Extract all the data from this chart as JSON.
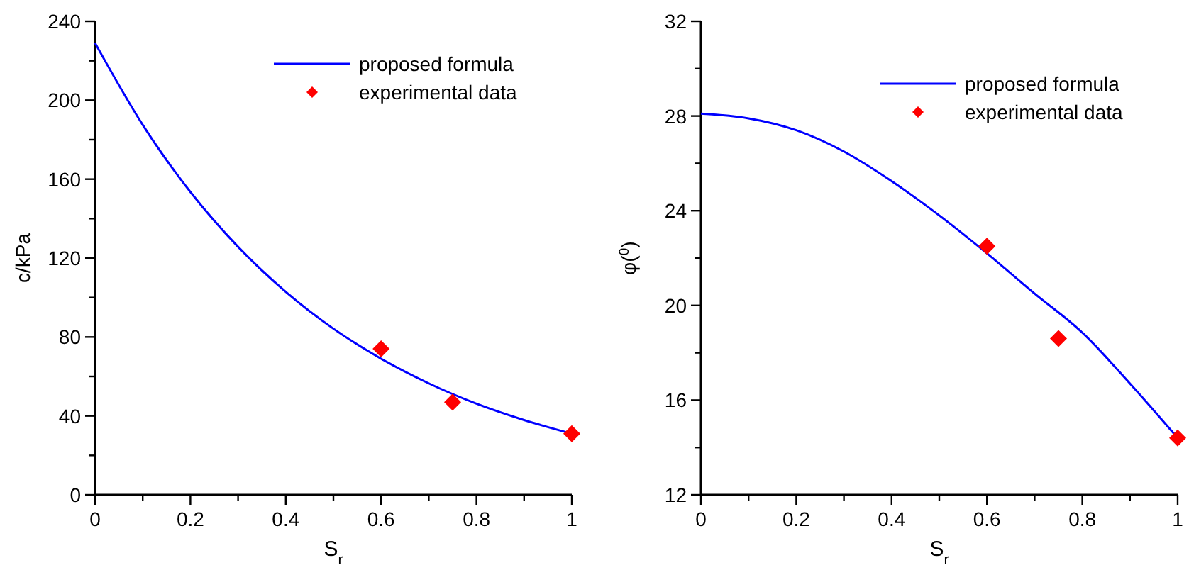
{
  "chart_data": [
    {
      "type": "line",
      "xlabel": "S$_{r}$",
      "ylabel": "c/kPa",
      "xlim": [
        0,
        1
      ],
      "ylim": [
        0,
        240
      ],
      "xticks": [
        0,
        {
          "value": 0.1,
          "label": null
        },
        0.2,
        {
          "value": 0.3,
          "label": null
        },
        0.4,
        {
          "value": 0.5,
          "label": null
        },
        0.6,
        {
          "value": 0.7,
          "label": null
        },
        0.8,
        {
          "value": 0.9,
          "label": null
        },
        1
      ],
      "yticks": [
        0,
        {
          "value": 20,
          "label": null
        },
        40,
        {
          "value": 60,
          "label": null
        },
        80,
        {
          "value": 100,
          "label": null
        },
        120,
        {
          "value": 140,
          "label": null
        },
        160,
        {
          "value": 180,
          "label": null
        },
        200,
        {
          "value": 220,
          "label": null
        },
        240
      ],
      "legend": "top right",
      "grid": false,
      "series": [
        {
          "name": "proposed formula",
          "color": "#0000ff",
          "marker": "none",
          "line_style": "solid",
          "x": [
            0,
            0.1,
            0.2,
            0.3,
            0.4,
            0.5,
            0.6,
            0.7,
            0.8,
            0.9,
            1
          ],
          "values": [
            229,
            187.5,
            153.5,
            125.7,
            102.9,
            84.2,
            69,
            56.5,
            46.2,
            37.9,
            31
          ]
        },
        {
          "name": "experimental data",
          "type": "scatter",
          "color": "#ff0000",
          "marker": "diamond",
          "x": [
            0.6,
            0.75,
            1
          ],
          "values": [
            74,
            47,
            31
          ]
        }
      ]
    },
    {
      "type": "line",
      "xlabel": "S$_{r}$",
      "ylabel": "φ($^{0}$)",
      "xlim": [
        0,
        1
      ],
      "ylim": [
        12,
        32
      ],
      "xticks": [
        0,
        {
          "value": 0.1,
          "label": null
        },
        0.2,
        {
          "value": 0.3,
          "label": null
        },
        0.4,
        {
          "value": 0.5,
          "label": null
        },
        0.6,
        {
          "value": 0.7,
          "label": null
        },
        0.8,
        {
          "value": 0.9,
          "label": null
        },
        1
      ],
      "yticks": [
        12,
        {
          "value": 14,
          "label": null
        },
        16,
        {
          "value": 18,
          "label": null
        },
        20,
        {
          "value": 22,
          "label": null
        },
        24,
        {
          "value": 26,
          "label": null
        },
        28,
        {
          "value": 30,
          "label": null
        },
        32
      ],
      "legend": "top right",
      "grid": false,
      "series": [
        {
          "name": "proposed formula",
          "color": "#0000ff",
          "marker": "none",
          "line_style": "solid",
          "x": [
            0,
            0.1,
            0.2,
            0.3,
            0.4,
            0.5,
            0.6,
            0.7,
            0.8,
            0.9,
            1
          ],
          "values": [
            28.1,
            27.9,
            27.4,
            26.5,
            25.25,
            23.8,
            22.2,
            20.5,
            18.85,
            16.7,
            14.4
          ]
        },
        {
          "name": "experimental data",
          "type": "scatter",
          "color": "#ff0000",
          "marker": "diamond",
          "x": [
            0.6,
            0.75,
            1
          ],
          "values": [
            22.5,
            18.6,
            14.4
          ]
        }
      ]
    }
  ]
}
